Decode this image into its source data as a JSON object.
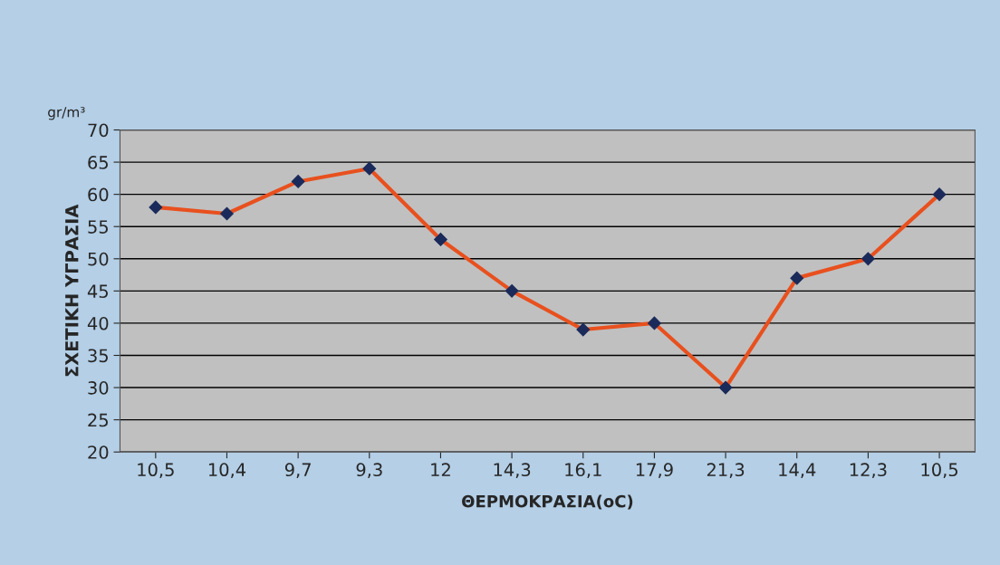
{
  "chart_data": {
    "type": "line",
    "xlabel": "ΘΕΡΜΟΚΡΑΣΙΑ(oC)",
    "ylabel": "ΣΧΕΤΙΚΗ ΥΓΡΑΣΙΑ",
    "annotations": [
      "gr/m³"
    ],
    "categories": [
      "10,5",
      "10,4",
      "9,7",
      "9,3",
      "12",
      "14,3",
      "16,1",
      "17,9",
      "21,3",
      "14,4",
      "12,3",
      "10,5"
    ],
    "series": [
      {
        "color": "#e8501e",
        "values": [
          58,
          57,
          62,
          64,
          53,
          45,
          39,
          40,
          30,
          47,
          50,
          60
        ]
      }
    ],
    "ylim": [
      20,
      70
    ],
    "yticks": [
      20,
      25,
      30,
      35,
      40,
      45,
      50,
      55,
      60,
      65,
      70
    ],
    "grid": "y",
    "marker": "diamond",
    "line_style": "solid"
  }
}
